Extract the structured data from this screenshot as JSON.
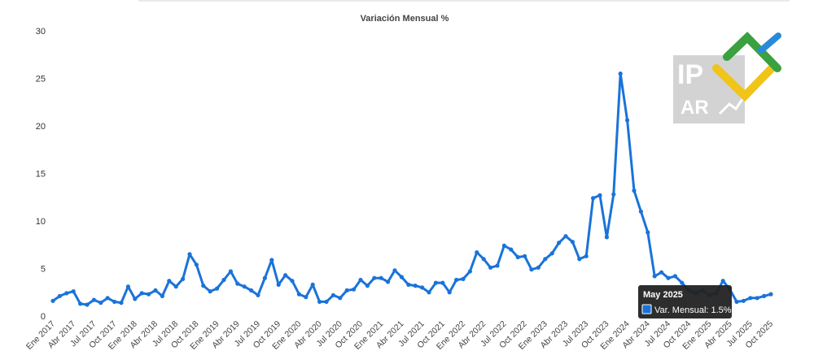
{
  "chart_data": {
    "type": "line",
    "title": "Variación Mensual %",
    "xlabel": "",
    "ylabel": "",
    "ylim": [
      0,
      30
    ],
    "yticks": [
      0,
      5,
      10,
      15,
      20,
      25,
      30
    ],
    "grid": false,
    "legend": "none",
    "color": "#1a73d9",
    "x": [
      "Ene 2017",
      "Feb 2017",
      "Mar 2017",
      "Abr 2017",
      "May 2017",
      "Jun 2017",
      "Jul 2017",
      "Ago 2017",
      "Sep 2017",
      "Oct 2017",
      "Nov 2017",
      "Dic 2017",
      "Ene 2018",
      "Feb 2018",
      "Mar 2018",
      "Abr 2018",
      "May 2018",
      "Jun 2018",
      "Jul 2018",
      "Ago 2018",
      "Sep 2018",
      "Oct 2018",
      "Nov 2018",
      "Dic 2018",
      "Ene 2019",
      "Feb 2019",
      "Mar 2019",
      "Abr 2019",
      "May 2019",
      "Jun 2019",
      "Jul 2019",
      "Ago 2019",
      "Sep 2019",
      "Oct 2019",
      "Nov 2019",
      "Dic 2019",
      "Ene 2020",
      "Feb 2020",
      "Mar 2020",
      "Abr 2020",
      "May 2020",
      "Jun 2020",
      "Jul 2020",
      "Ago 2020",
      "Sep 2020",
      "Oct 2020",
      "Nov 2020",
      "Dic 2020",
      "Ene 2021",
      "Feb 2021",
      "Mar 2021",
      "Abr 2021",
      "May 2021",
      "Jun 2021",
      "Jul 2021",
      "Ago 2021",
      "Sep 2021",
      "Oct 2021",
      "Nov 2021",
      "Dic 2021",
      "Ene 2022",
      "Feb 2022",
      "Mar 2022",
      "Abr 2022",
      "May 2022",
      "Jun 2022",
      "Jul 2022",
      "Ago 2022",
      "Sep 2022",
      "Oct 2022",
      "Nov 2022",
      "Dic 2022",
      "Ene 2023",
      "Feb 2023",
      "Mar 2023",
      "Abr 2023",
      "May 2023",
      "Jun 2023",
      "Jul 2023",
      "Ago 2023",
      "Sep 2023",
      "Oct 2023",
      "Nov 2023",
      "Dic 2023",
      "Ene 2024",
      "Feb 2024",
      "Mar 2024",
      "Abr 2024",
      "May 2024",
      "Jun 2024",
      "Jul 2024",
      "Ago 2024",
      "Sep 2024",
      "Oct 2024",
      "Nov 2024",
      "Dic 2024",
      "Ene 2025",
      "Feb 2025",
      "Mar 2025",
      "Abr 2025",
      "May 2025",
      "Jun 2025",
      "Jul 2025",
      "Ago 2025",
      "Sep 2025",
      "Oct 2025"
    ],
    "series": [
      {
        "values": [
          1.6,
          2.1,
          2.4,
          2.6,
          1.3,
          1.2,
          1.7,
          1.4,
          1.9,
          1.5,
          1.4,
          3.1,
          1.8,
          2.4,
          2.3,
          2.7,
          2.1,
          3.7,
          3.1,
          3.9,
          6.5,
          5.4,
          3.2,
          2.6,
          2.9,
          3.8,
          4.7,
          3.4,
          3.1,
          2.7,
          2.2,
          4.0,
          5.9,
          3.3,
          4.3,
          3.7,
          2.3,
          2.0,
          3.3,
          1.5,
          1.5,
          2.2,
          1.9,
          2.7,
          2.8,
          3.8,
          3.2,
          4.0,
          4.0,
          3.6,
          4.8,
          4.1,
          3.3,
          3.2,
          3.0,
          2.5,
          3.5,
          3.5,
          2.5,
          3.8,
          3.9,
          4.7,
          6.7,
          6.0,
          5.1,
          5.3,
          7.4,
          7.0,
          6.2,
          6.3,
          4.9,
          5.1,
          6.0,
          6.6,
          7.7,
          8.4,
          7.8,
          6.0,
          6.3,
          12.4,
          12.7,
          8.3,
          12.8,
          25.5,
          20.6,
          13.2,
          11.0,
          8.8,
          4.2,
          4.6,
          4.0,
          4.2,
          3.5,
          2.7,
          2.4,
          2.7,
          2.2,
          2.4,
          3.7,
          2.8,
          1.5,
          1.6,
          1.9,
          1.9,
          2.1,
          2.3
        ]
      }
    ],
    "xticks": [
      "Ene 2017",
      "Abr 2017",
      "Jul 2017",
      "Oct 2017",
      "Ene 2018",
      "Abr 2018",
      "Jul 2018",
      "Oct 2018",
      "Ene 2019",
      "Abr 2019",
      "Jul 2019",
      "Oct 2019",
      "Ene 2020",
      "Abr 2020",
      "Jul 2020",
      "Oct 2020",
      "Ene 2021",
      "Abr 2021",
      "Jul 2021",
      "Oct 2021",
      "Ene 2022",
      "Abr 2022",
      "Jul 2022",
      "Oct 2022",
      "Ene 2023",
      "Abr 2023",
      "Jul 2023",
      "Oct 2023",
      "Ene 2024",
      "Abr 2024",
      "Jul 2024",
      "Oct 2024",
      "Ene 2025",
      "Abr 2025",
      "Jul 2025",
      "Oct 2025"
    ]
  },
  "tooltip": {
    "title": "May 2025",
    "series_label": "Var. Mensual: 1.5%",
    "point_x": "May 2025",
    "point_value": 1.5
  },
  "logo": {
    "text_line1": "IP",
    "text_line2": "AR",
    "colors": [
      "#3aa040",
      "#f0c419",
      "#2a8ad8",
      "#c8c8c8"
    ]
  }
}
